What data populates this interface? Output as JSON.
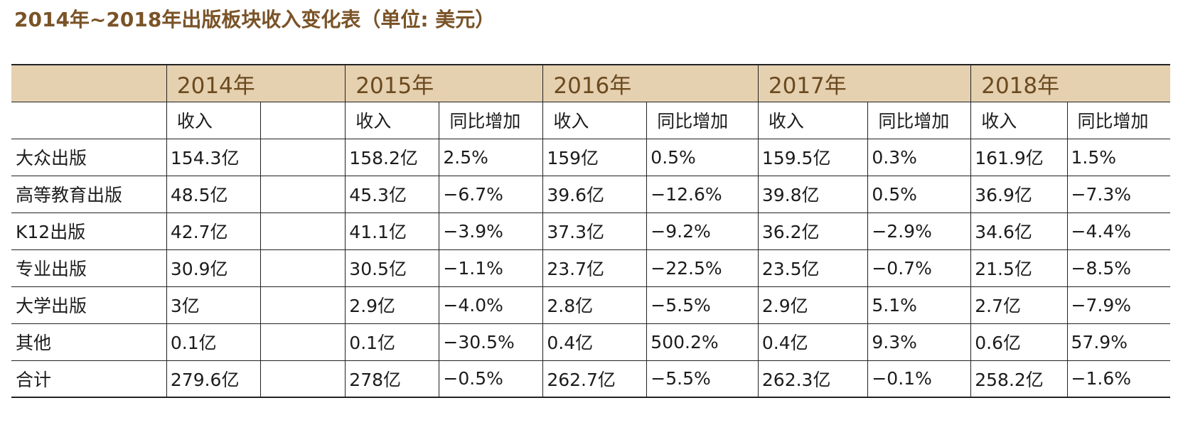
{
  "title": "2014年~2018年出版板块收入变化表（单位: 美元）",
  "header": {
    "years": [
      "2014年",
      "2015年",
      "2016年",
      "2017年",
      "2018年"
    ],
    "revenue_label": "收入",
    "yoy_label": "同比增加"
  },
  "rows": [
    {
      "label": "大众出版",
      "y2014": "154.3亿",
      "y2015": {
        "revenue": "158.2亿",
        "yoy": "2.5%"
      },
      "y2016": {
        "revenue": "159亿",
        "yoy": "0.5%"
      },
      "y2017": {
        "revenue": "159.5亿",
        "yoy": "0.3%"
      },
      "y2018": {
        "revenue": "161.9亿",
        "yoy": "1.5%"
      }
    },
    {
      "label": "高等教育出版",
      "y2014": "48.5亿",
      "y2015": {
        "revenue": "45.3亿",
        "yoy": "−6.7%"
      },
      "y2016": {
        "revenue": "39.6亿",
        "yoy": "−12.6%"
      },
      "y2017": {
        "revenue": "39.8亿",
        "yoy": "0.5%"
      },
      "y2018": {
        "revenue": "36.9亿",
        "yoy": "−7.3%"
      }
    },
    {
      "label": "K12出版",
      "y2014": "42.7亿",
      "y2015": {
        "revenue": "41.1亿",
        "yoy": "−3.9%"
      },
      "y2016": {
        "revenue": "37.3亿",
        "yoy": "−9.2%"
      },
      "y2017": {
        "revenue": "36.2亿",
        "yoy": "−2.9%"
      },
      "y2018": {
        "revenue": "34.6亿",
        "yoy": "−4.4%"
      }
    },
    {
      "label": "专业出版",
      "y2014": "30.9亿",
      "y2015": {
        "revenue": "30.5亿",
        "yoy": "−1.1%"
      },
      "y2016": {
        "revenue": "23.7亿",
        "yoy": "−22.5%"
      },
      "y2017": {
        "revenue": "23.5亿",
        "yoy": "−0.7%"
      },
      "y2018": {
        "revenue": "21.5亿",
        "yoy": "−8.5%"
      }
    },
    {
      "label": "大学出版",
      "y2014": "3亿",
      "y2015": {
        "revenue": "2.9亿",
        "yoy": "−4.0%"
      },
      "y2016": {
        "revenue": "2.8亿",
        "yoy": "−5.5%"
      },
      "y2017": {
        "revenue": "2.9亿",
        "yoy": "5.1%"
      },
      "y2018": {
        "revenue": "2.7亿",
        "yoy": "−7.9%"
      }
    },
    {
      "label": "其他",
      "y2014": "0.1亿",
      "y2015": {
        "revenue": "0.1亿",
        "yoy": "−30.5%"
      },
      "y2016": {
        "revenue": "0.4亿",
        "yoy": "500.2%"
      },
      "y2017": {
        "revenue": "0.4亿",
        "yoy": "9.3%"
      },
      "y2018": {
        "revenue": "0.6亿",
        "yoy": "57.9%"
      }
    },
    {
      "label": "合计",
      "y2014": "279.6亿",
      "y2015": {
        "revenue": "278亿",
        "yoy": "−0.5%"
      },
      "y2016": {
        "revenue": "262.7亿",
        "yoy": "−5.5%"
      },
      "y2017": {
        "revenue": "262.3亿",
        "yoy": "−0.1%"
      },
      "y2018": {
        "revenue": "258.2亿",
        "yoy": "−1.6%"
      }
    }
  ]
}
